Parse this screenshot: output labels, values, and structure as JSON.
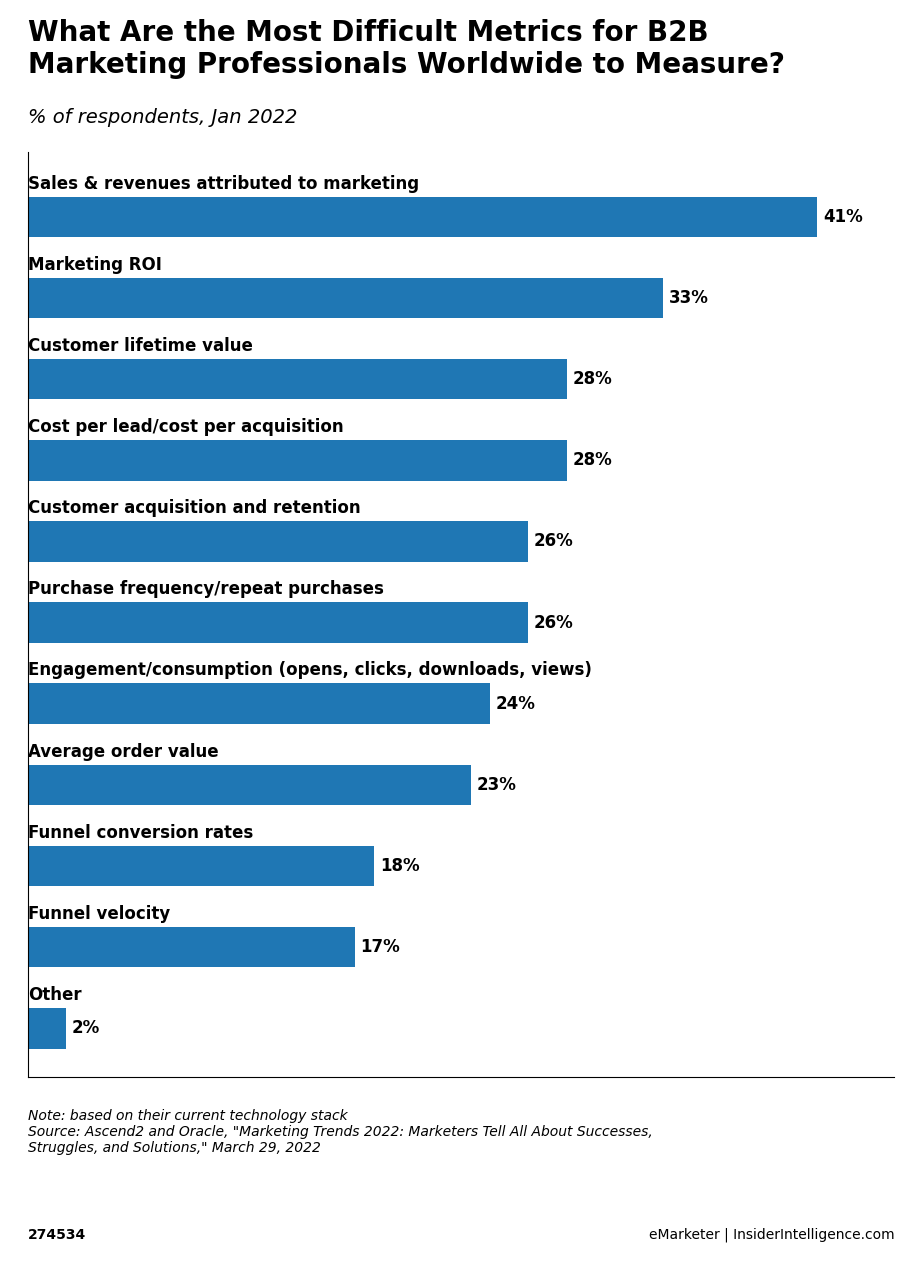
{
  "chart_data": {
    "type": "bar",
    "orientation": "horizontal",
    "title": "What Are the Most Difficult Metrics for B2B\nMarketing Professionals Worldwide to Measure?",
    "subtitle": "% of respondents, Jan 2022",
    "categories": [
      "Sales & revenues attributed to marketing",
      "Marketing ROI",
      "Customer lifetime value",
      "Cost per lead/cost per acquisition",
      "Customer acquisition and retention",
      "Purchase frequency/repeat purchases",
      "Engagement/consumption (opens, clicks, downloads, views)",
      "Average order value",
      "Funnel conversion rates",
      "Funnel velocity",
      "Other"
    ],
    "values": [
      41,
      33,
      28,
      28,
      26,
      26,
      24,
      23,
      18,
      17,
      2
    ],
    "value_labels": [
      "41%",
      "33%",
      "28%",
      "28%",
      "26%",
      "26%",
      "24%",
      "23%",
      "18%",
      "17%",
      "2%"
    ],
    "data_labels": true,
    "xlim": [
      0,
      45
    ],
    "tick_labels": false,
    "annotations": [
      "Note: based on their current technology stack",
      "Source: Ascend2 and Oracle, \"Marketing Trends 2022: Marketers Tell All About Successes,",
      "Struggles, and Solutions,\" March 29, 2022",
      "274534",
      "eMarketer | InsiderIntelligence.com"
    ]
  }
}
